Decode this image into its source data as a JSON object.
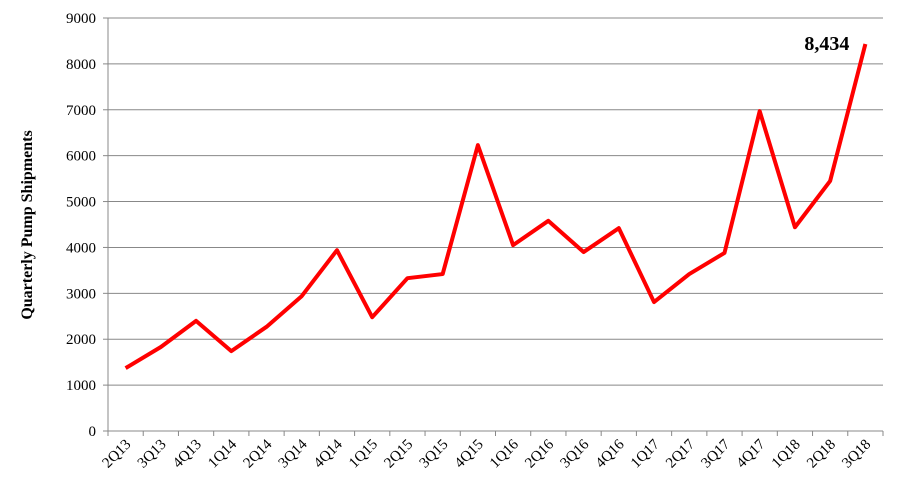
{
  "chart_data": {
    "type": "line",
    "y_label": "Quarterly Pump Shipments",
    "categories": [
      "2Q13",
      "3Q13",
      "4Q13",
      "1Q14",
      "2Q14",
      "3Q14",
      "4Q14",
      "1Q15",
      "2Q15",
      "3Q15",
      "4Q15",
      "1Q16",
      "2Q16",
      "3Q16",
      "4Q16",
      "1Q17",
      "2Q17",
      "3Q17",
      "4Q17",
      "1Q18",
      "2Q18",
      "3Q18"
    ],
    "series": [
      {
        "name": "Quarterly Pump Shipments",
        "color": "#ff0000",
        "values": [
          1370,
          1830,
          2400,
          1740,
          2270,
          2940,
          3940,
          2480,
          3330,
          3420,
          6230,
          4050,
          4580,
          3900,
          4420,
          2810,
          3420,
          3880,
          6970,
          4440,
          5450,
          8434
        ],
        "value_labels": [
          null,
          null,
          null,
          null,
          null,
          null,
          null,
          null,
          null,
          null,
          null,
          null,
          null,
          null,
          null,
          null,
          null,
          null,
          null,
          null,
          null,
          "8,434"
        ]
      }
    ],
    "ylim": [
      0,
      9000
    ],
    "yticks": [
      0,
      1000,
      2000,
      3000,
      4000,
      5000,
      6000,
      7000,
      8000,
      9000
    ],
    "grid": true
  }
}
